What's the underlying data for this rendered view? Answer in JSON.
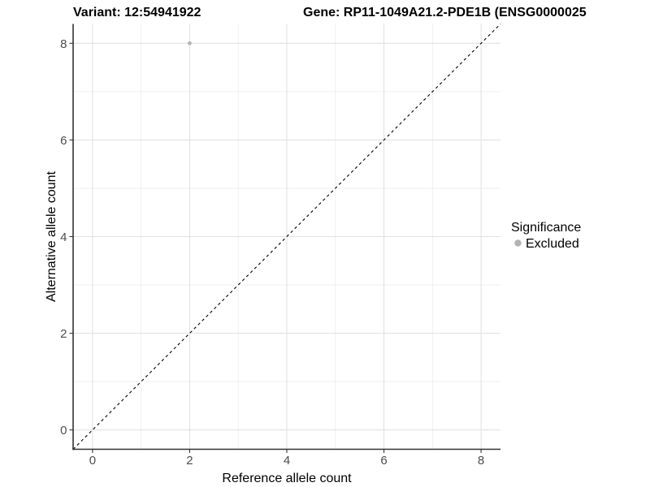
{
  "figure": {
    "background": "#ffffff"
  },
  "chart_data": {
    "type": "scatter",
    "titles": {
      "left": "Variant: 12:54941922",
      "right": "Gene: RP11-1049A21.2-PDE1B (ENSG0000025"
    },
    "xlabel": "Reference allele count",
    "ylabel": "Alternative allele count",
    "xlim": [
      -0.4,
      8.4
    ],
    "ylim": [
      -0.4,
      8.4
    ],
    "x_ticks": [
      0,
      2,
      4,
      6,
      8
    ],
    "y_ticks": [
      0,
      2,
      4,
      6,
      8
    ],
    "minor_gridlines": [
      1,
      3,
      5,
      7
    ],
    "grid": true,
    "series": [
      {
        "name": "Excluded",
        "color": "#b3b3b3",
        "marker": "circle",
        "points": [
          {
            "x": 2,
            "y": 8
          }
        ]
      }
    ],
    "reference_line": {
      "kind": "identity y=x",
      "style": "dashed",
      "color": "#000000"
    },
    "legend": {
      "title": "Significance",
      "position": "right",
      "entries": [
        {
          "label": "Excluded",
          "color": "#b3b3b3"
        }
      ]
    },
    "colors": {
      "axis": "#333333",
      "tick_label": "#4d4d4d",
      "grid_major": "#e2e2e2",
      "grid_minor": "#efefef",
      "point": "#b3b3b3"
    }
  }
}
